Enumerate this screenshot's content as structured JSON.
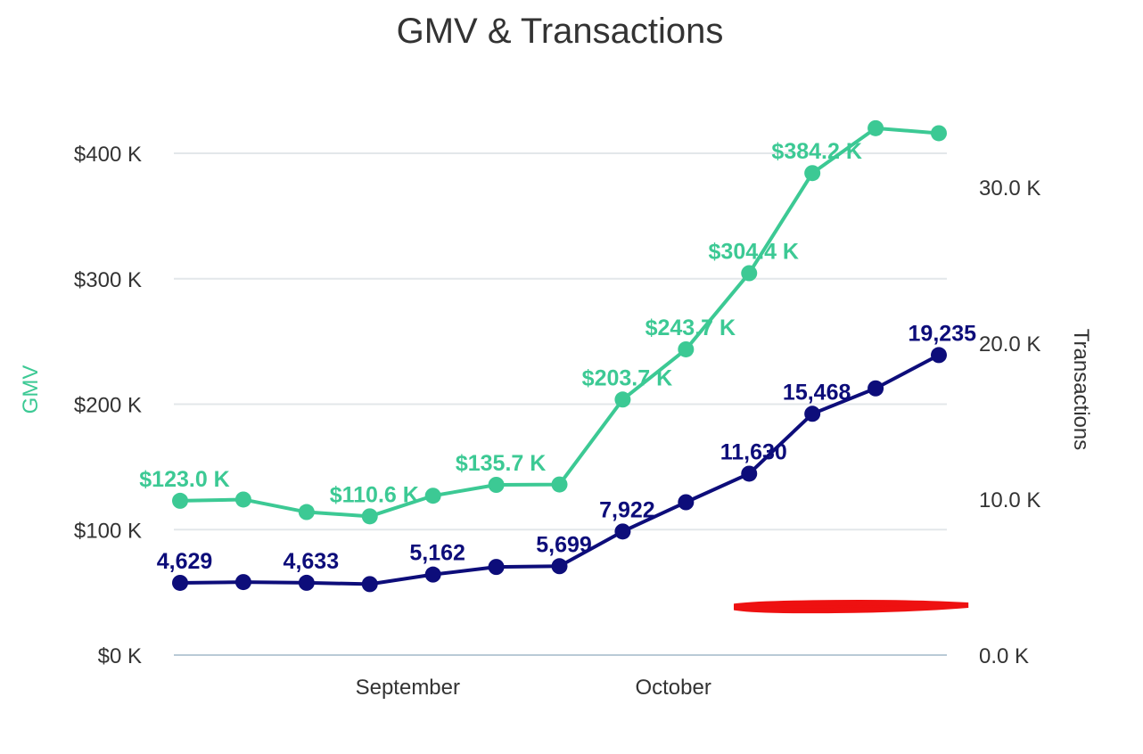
{
  "chart_data": {
    "type": "line",
    "title": "GMV & Transactions",
    "ylabel": "GMV",
    "y2label": "Transactions",
    "x_tick_labels": [
      "September",
      "October"
    ],
    "ylim": [
      0,
      400000
    ],
    "y2lim": [
      0,
      30000
    ],
    "y_ticks": [
      "$0 K",
      "$100 K",
      "$200 K",
      "$300 K",
      "$400 K"
    ],
    "y2_ticks": [
      "0.0 K",
      "10.0 K",
      "20.0 K",
      "30.0 K"
    ],
    "grid": true,
    "series": [
      {
        "name": "GMV",
        "axis": "left",
        "color": "#3cc994",
        "values": [
          123000,
          124000,
          114000,
          110600,
          127000,
          135700,
          136000,
          203700,
          243700,
          304400,
          384200,
          420000,
          416000
        ],
        "labels": [
          "$123.0 K",
          "",
          "",
          "$110.6 K",
          "",
          "$135.7 K",
          "",
          "$203.7 K",
          "$243.7 K",
          "$304.4 K",
          "$384.2 K",
          "",
          ""
        ]
      },
      {
        "name": "Transactions",
        "axis": "right",
        "color": "#0d0d7a",
        "values": [
          4629,
          4680,
          4633,
          4550,
          5162,
          5650,
          5699,
          7922,
          9800,
          11630,
          15468,
          17100,
          19235
        ],
        "labels": [
          "4,629",
          "",
          "4,633",
          "",
          "5,162",
          "",
          "5,699",
          "7,922",
          "",
          "11,630",
          "15,468",
          "",
          "19,235"
        ]
      }
    ]
  }
}
